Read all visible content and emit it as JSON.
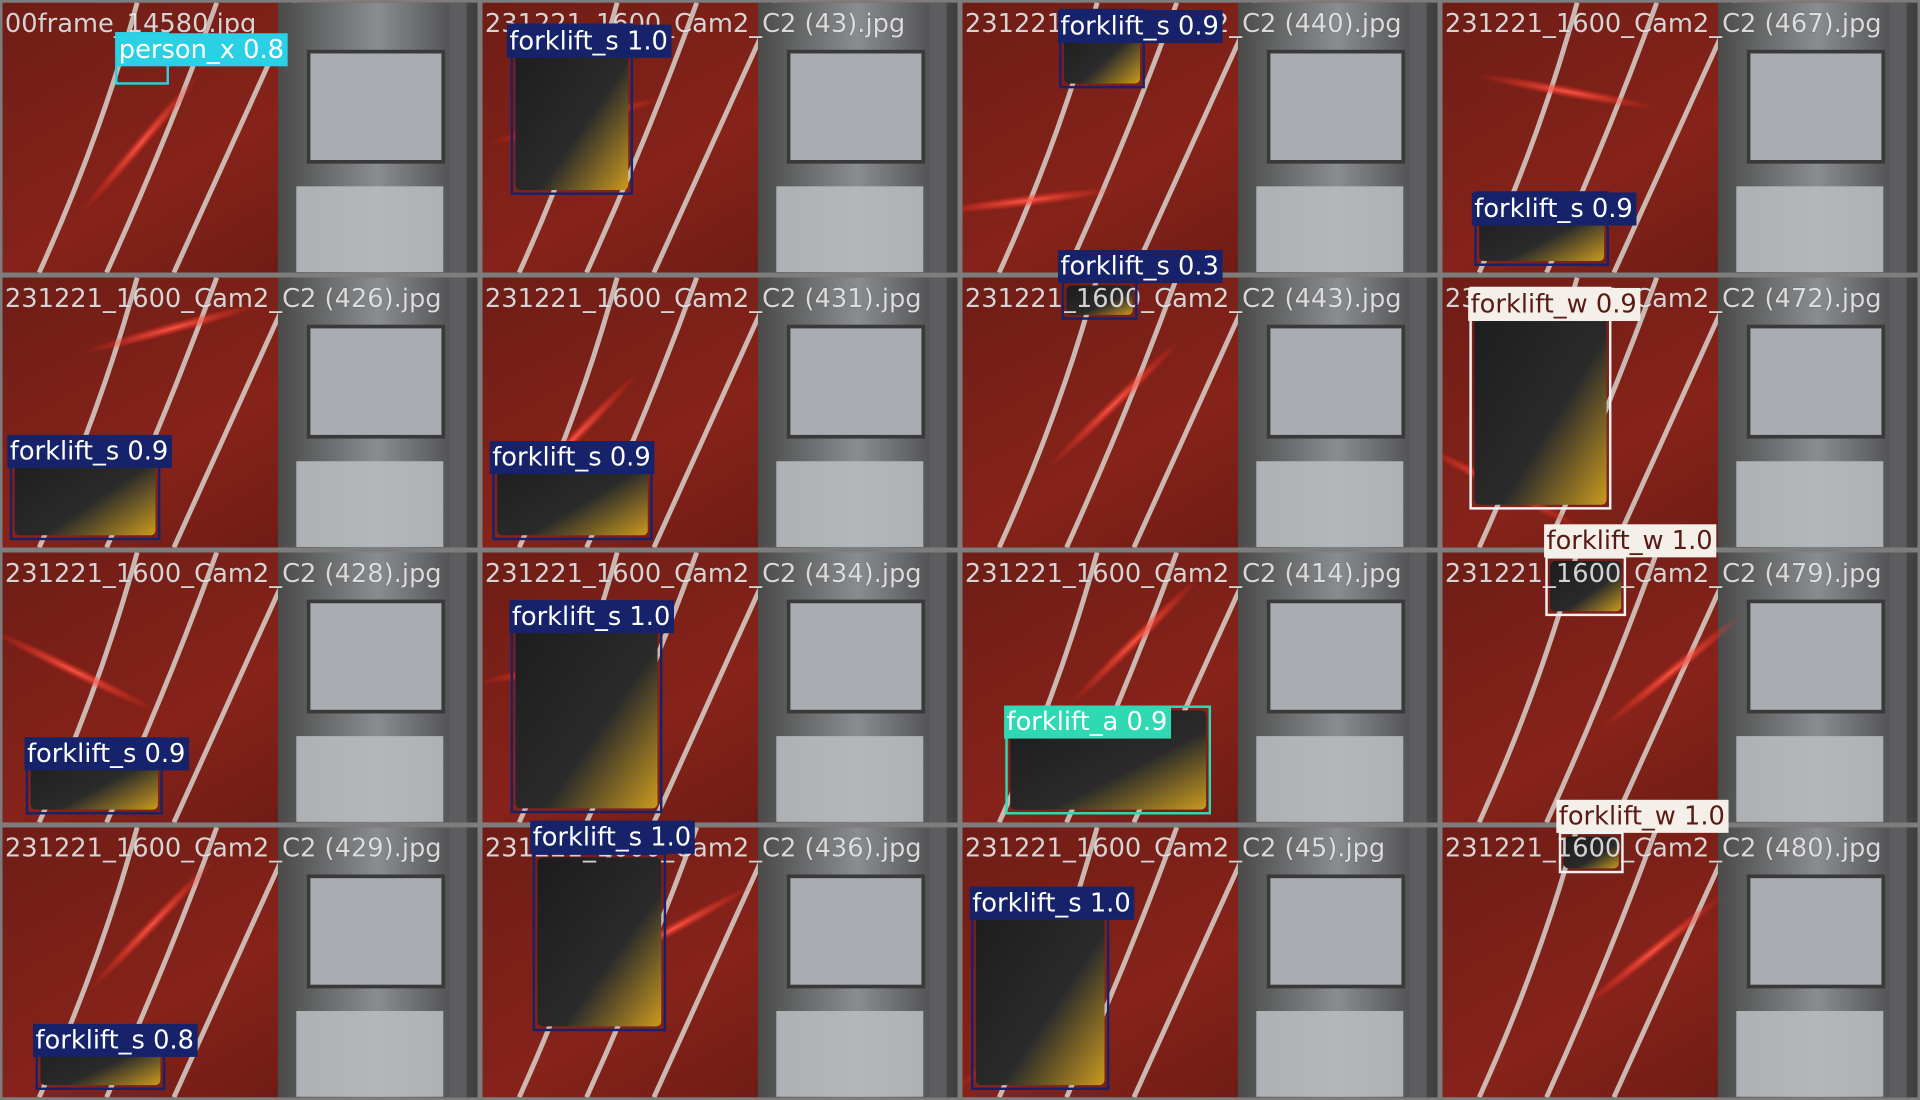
{
  "tiles": [
    {
      "filename": "00frame_14580.jpg",
      "detections": [
        "person_x 0.8"
      ]
    },
    {
      "filename": "231221_1600_Cam2_C2 (43).jpg",
      "detections": [
        "forklift_s 1.0"
      ]
    },
    {
      "filename": "231221_1600_Cam2_C2 (440).jpg",
      "detections": [
        "forklift_s 0.9"
      ]
    },
    {
      "filename": "231221_1600_Cam2_C2 (467).jpg",
      "detections": [
        "forklift_s 0.9"
      ]
    },
    {
      "filename": "231221_1600_Cam2_C2 (426).jpg",
      "detections": [
        "forklift_s 0.9"
      ]
    },
    {
      "filename": "231221_1600_Cam2_C2 (431).jpg",
      "detections": [
        "forklift_s 0.9"
      ]
    },
    {
      "filename": "231221_1600_Cam2_C2 (443).jpg",
      "detections": [
        "forklift_s 0.3"
      ]
    },
    {
      "filename": "231221_1600_Cam2_C2 (472).jpg",
      "detections": [
        "forklift_w 0.9"
      ]
    },
    {
      "filename": "231221_1600_Cam2_C2 (428).jpg",
      "detections": [
        "forklift_s 0.9"
      ]
    },
    {
      "filename": "231221_1600_Cam2_C2 (434).jpg",
      "detections": [
        "forklift_s 1.0"
      ]
    },
    {
      "filename": "231221_1600_Cam2_C2 (414).jpg",
      "detections": [
        "forklift_a 0.9"
      ]
    },
    {
      "filename": "231221_1600_Cam2_C2 (479).jpg",
      "detections": [
        "forklift_w 1.0"
      ]
    },
    {
      "filename": "231221_1600_Cam2_C2 (429).jpg",
      "detections": [
        "forklift_s 0.8"
      ]
    },
    {
      "filename": "231221_1600_Cam2_C2 (436).jpg",
      "detections": [
        "forklift_s 1.0"
      ]
    },
    {
      "filename": "231221_1600_Cam2_C2 (45).jpg",
      "detections": [
        "forklift_s 1.0"
      ]
    },
    {
      "filename": "231221_1600_Cam2_C2 (480).jpg",
      "detections": [
        "forklift_w 1.0"
      ]
    }
  ]
}
